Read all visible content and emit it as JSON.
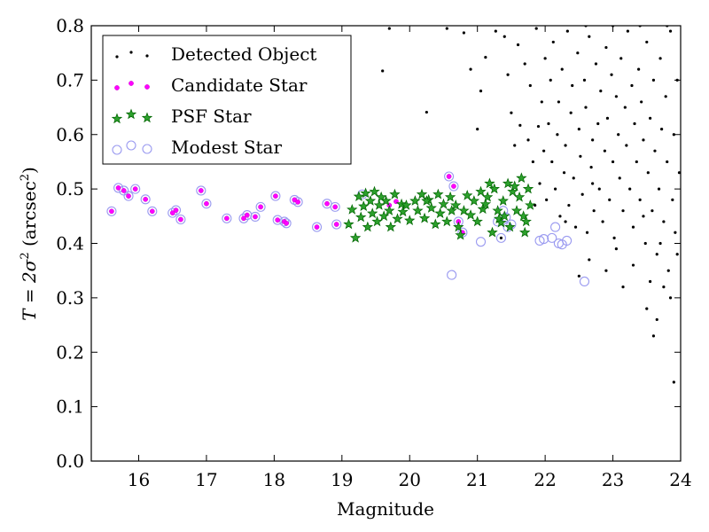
{
  "chart_data": {
    "type": "scatter",
    "title": "",
    "xlabel": "Magnitude",
    "ylabel_main": "T = 2σ",
    "ylabel_sup": "2",
    "ylabel_paren": " (arcsec",
    "ylabel_unit_sup": "2",
    "ylabel_close": ")",
    "xlim": [
      15.3,
      24
    ],
    "ylim": [
      0,
      0.8
    ],
    "xticks": [
      "16",
      "17",
      "18",
      "19",
      "20",
      "21",
      "22",
      "23",
      "24"
    ],
    "yticks": [
      "0.0",
      "0.1",
      "0.2",
      "0.3",
      "0.4",
      "0.5",
      "0.6",
      "0.7",
      "0.8"
    ],
    "grid": false,
    "legend_position": "top-left",
    "colors": {
      "detected": "#000000",
      "candidate_fill": "#ff00ff",
      "psf_fill": "#2ca02c",
      "psf_edge": "#006400",
      "modest_edge": "#9a9af0"
    },
    "series": [
      {
        "name": "Detected Object",
        "marker": "dot",
        "points": [
          [
            19.7,
            0.795
          ],
          [
            19.6,
            0.717
          ],
          [
            20.25,
            0.641
          ],
          [
            20.55,
            0.795
          ],
          [
            20.8,
            0.787
          ],
          [
            20.9,
            0.72
          ],
          [
            21.05,
            0.68
          ],
          [
            21.12,
            0.742
          ],
          [
            21.27,
            0.79
          ],
          [
            21.4,
            0.78
          ],
          [
            21.45,
            0.71
          ],
          [
            21.5,
            0.64
          ],
          [
            21.6,
            0.765
          ],
          [
            21.63,
            0.617
          ],
          [
            21.7,
            0.73
          ],
          [
            21.75,
            0.59
          ],
          [
            21.78,
            0.69
          ],
          [
            21.82,
            0.55
          ],
          [
            21.87,
            0.795
          ],
          [
            21.9,
            0.615
          ],
          [
            21.92,
            0.51
          ],
          [
            21.95,
            0.66
          ],
          [
            21.98,
            0.57
          ],
          [
            22.0,
            0.74
          ],
          [
            22.02,
            0.48
          ],
          [
            22.05,
            0.62
          ],
          [
            22.08,
            0.7
          ],
          [
            22.1,
            0.55
          ],
          [
            22.12,
            0.77
          ],
          [
            22.15,
            0.5
          ],
          [
            22.18,
            0.6
          ],
          [
            22.2,
            0.66
          ],
          [
            22.22,
            0.45
          ],
          [
            22.25,
            0.72
          ],
          [
            22.28,
            0.53
          ],
          [
            22.3,
            0.58
          ],
          [
            22.33,
            0.79
          ],
          [
            22.35,
            0.47
          ],
          [
            22.38,
            0.64
          ],
          [
            22.4,
            0.69
          ],
          [
            22.42,
            0.52
          ],
          [
            22.45,
            0.43
          ],
          [
            22.48,
            0.75
          ],
          [
            22.5,
            0.61
          ],
          [
            22.52,
            0.56
          ],
          [
            22.55,
            0.49
          ],
          [
            22.58,
            0.7
          ],
          [
            22.6,
            0.65
          ],
          [
            22.62,
            0.42
          ],
          [
            22.65,
            0.78
          ],
          [
            22.68,
            0.54
          ],
          [
            22.7,
            0.59
          ],
          [
            22.72,
            0.46
          ],
          [
            22.75,
            0.73
          ],
          [
            22.78,
            0.62
          ],
          [
            22.8,
            0.5
          ],
          [
            22.82,
            0.68
          ],
          [
            22.85,
            0.44
          ],
          [
            22.88,
            0.57
          ],
          [
            22.9,
            0.76
          ],
          [
            22.92,
            0.63
          ],
          [
            22.95,
            0.48
          ],
          [
            22.98,
            0.71
          ],
          [
            23.0,
            0.55
          ],
          [
            23.02,
            0.41
          ],
          [
            23.05,
            0.67
          ],
          [
            23.08,
            0.6
          ],
          [
            23.1,
            0.52
          ],
          [
            23.12,
            0.74
          ],
          [
            23.15,
            0.46
          ],
          [
            23.18,
            0.65
          ],
          [
            23.2,
            0.58
          ],
          [
            23.22,
            0.79
          ],
          [
            23.25,
            0.5
          ],
          [
            23.28,
            0.69
          ],
          [
            23.3,
            0.43
          ],
          [
            23.32,
            0.62
          ],
          [
            23.35,
            0.55
          ],
          [
            23.38,
            0.72
          ],
          [
            23.4,
            0.48
          ],
          [
            23.42,
            0.66
          ],
          [
            23.45,
            0.59
          ],
          [
            23.48,
            0.4
          ],
          [
            23.5,
            0.77
          ],
          [
            23.52,
            0.53
          ],
          [
            23.55,
            0.63
          ],
          [
            23.58,
            0.46
          ],
          [
            23.6,
            0.7
          ],
          [
            23.62,
            0.57
          ],
          [
            23.65,
            0.38
          ],
          [
            23.68,
            0.5
          ],
          [
            23.7,
            0.74
          ],
          [
            23.72,
            0.61
          ],
          [
            23.75,
            0.44
          ],
          [
            23.78,
            0.67
          ],
          [
            23.8,
            0.55
          ],
          [
            23.82,
            0.35
          ],
          [
            23.85,
            0.79
          ],
          [
            23.88,
            0.48
          ],
          [
            23.9,
            0.6
          ],
          [
            23.92,
            0.42
          ],
          [
            23.95,
            0.7
          ],
          [
            23.98,
            0.53
          ],
          [
            23.5,
            0.28
          ],
          [
            23.6,
            0.23
          ],
          [
            23.65,
            0.26
          ],
          [
            23.9,
            0.145
          ],
          [
            22.5,
            0.34
          ],
          [
            23.15,
            0.32
          ],
          [
            23.75,
            0.32
          ],
          [
            21.35,
            0.41
          ],
          [
            21.0,
            0.61
          ],
          [
            21.55,
            0.58
          ],
          [
            22.65,
            0.37
          ],
          [
            23.05,
            0.39
          ],
          [
            23.3,
            0.36
          ],
          [
            23.55,
            0.33
          ],
          [
            23.85,
            0.3
          ],
          [
            22.9,
            0.35
          ],
          [
            22.3,
            0.44
          ],
          [
            21.85,
            0.47
          ],
          [
            22.7,
            0.51
          ],
          [
            23.45,
            0.45
          ],
          [
            23.7,
            0.4
          ],
          [
            23.95,
            0.38
          ],
          [
            22.6,
            0.8
          ],
          [
            23.0,
            0.8
          ],
          [
            23.4,
            0.8
          ],
          [
            23.8,
            0.8
          ]
        ]
      },
      {
        "name": "Candidate Star",
        "marker": "circle",
        "points": [
          [
            15.6,
            0.459
          ],
          [
            15.7,
            0.502
          ],
          [
            15.78,
            0.497
          ],
          [
            15.85,
            0.487
          ],
          [
            15.95,
            0.5
          ],
          [
            16.1,
            0.481
          ],
          [
            16.2,
            0.459
          ],
          [
            16.5,
            0.456
          ],
          [
            16.55,
            0.461
          ],
          [
            16.62,
            0.444
          ],
          [
            16.92,
            0.497
          ],
          [
            17.0,
            0.473
          ],
          [
            17.3,
            0.446
          ],
          [
            17.55,
            0.446
          ],
          [
            17.6,
            0.452
          ],
          [
            17.72,
            0.449
          ],
          [
            17.8,
            0.467
          ],
          [
            18.02,
            0.487
          ],
          [
            18.05,
            0.443
          ],
          [
            18.15,
            0.44
          ],
          [
            18.18,
            0.437
          ],
          [
            18.3,
            0.48
          ],
          [
            18.35,
            0.476
          ],
          [
            18.63,
            0.43
          ],
          [
            18.78,
            0.473
          ],
          [
            18.9,
            0.467
          ],
          [
            18.92,
            0.435
          ],
          [
            19.8,
            0.477
          ],
          [
            20.58,
            0.523
          ],
          [
            20.65,
            0.505
          ],
          [
            20.72,
            0.44
          ],
          [
            20.78,
            0.42
          ],
          [
            19.7,
            0.47
          ]
        ]
      },
      {
        "name": "PSF Star",
        "marker": "star",
        "points": [
          [
            19.1,
            0.435
          ],
          [
            19.15,
            0.462
          ],
          [
            19.2,
            0.41
          ],
          [
            19.25,
            0.486
          ],
          [
            19.28,
            0.448
          ],
          [
            19.32,
            0.468
          ],
          [
            19.35,
            0.492
          ],
          [
            19.38,
            0.43
          ],
          [
            19.42,
            0.478
          ],
          [
            19.45,
            0.455
          ],
          [
            19.48,
            0.495
          ],
          [
            19.52,
            0.44
          ],
          [
            19.55,
            0.47
          ],
          [
            19.58,
            0.485
          ],
          [
            19.62,
            0.45
          ],
          [
            19.65,
            0.478
          ],
          [
            19.7,
            0.46
          ],
          [
            19.72,
            0.43
          ],
          [
            19.78,
            0.49
          ],
          [
            19.82,
            0.445
          ],
          [
            19.88,
            0.472
          ],
          [
            19.9,
            0.458
          ],
          [
            20.0,
            0.442
          ],
          [
            20.08,
            0.478
          ],
          [
            20.12,
            0.46
          ],
          [
            20.18,
            0.49
          ],
          [
            20.22,
            0.446
          ],
          [
            20.28,
            0.48
          ],
          [
            20.32,
            0.465
          ],
          [
            20.38,
            0.435
          ],
          [
            20.42,
            0.49
          ],
          [
            20.45,
            0.455
          ],
          [
            20.5,
            0.472
          ],
          [
            20.55,
            0.44
          ],
          [
            20.6,
            0.485
          ],
          [
            20.62,
            0.46
          ],
          [
            20.68,
            0.47
          ],
          [
            20.72,
            0.43
          ],
          [
            20.75,
            0.415
          ],
          [
            20.8,
            0.46
          ],
          [
            20.85,
            0.488
          ],
          [
            20.9,
            0.452
          ],
          [
            20.95,
            0.478
          ],
          [
            21.0,
            0.44
          ],
          [
            21.05,
            0.495
          ],
          [
            21.08,
            0.463
          ],
          [
            21.12,
            0.472
          ],
          [
            21.18,
            0.51
          ],
          [
            21.22,
            0.42
          ],
          [
            21.25,
            0.5
          ],
          [
            21.3,
            0.46
          ],
          [
            21.32,
            0.445
          ],
          [
            21.35,
            0.438
          ],
          [
            21.38,
            0.478
          ],
          [
            21.4,
            0.45
          ],
          [
            21.45,
            0.51
          ],
          [
            21.48,
            0.43
          ],
          [
            21.52,
            0.495
          ],
          [
            21.55,
            0.505
          ],
          [
            21.58,
            0.46
          ],
          [
            21.62,
            0.485
          ],
          [
            21.65,
            0.52
          ],
          [
            21.68,
            0.45
          ],
          [
            21.72,
            0.44
          ],
          [
            21.75,
            0.5
          ],
          [
            21.78,
            0.47
          ],
          [
            21.7,
            0.42
          ],
          [
            19.95,
            0.47
          ],
          [
            20.25,
            0.478
          ],
          [
            21.15,
            0.485
          ]
        ]
      },
      {
        "name": "Modest Star",
        "marker": "open-circle",
        "points": [
          [
            15.6,
            0.459
          ],
          [
            15.7,
            0.502
          ],
          [
            15.78,
            0.497
          ],
          [
            15.85,
            0.487
          ],
          [
            15.95,
            0.5
          ],
          [
            16.1,
            0.481
          ],
          [
            16.2,
            0.459
          ],
          [
            16.5,
            0.456
          ],
          [
            16.55,
            0.461
          ],
          [
            16.62,
            0.444
          ],
          [
            16.92,
            0.497
          ],
          [
            17.0,
            0.473
          ],
          [
            17.3,
            0.446
          ],
          [
            17.55,
            0.446
          ],
          [
            17.6,
            0.452
          ],
          [
            17.72,
            0.449
          ],
          [
            17.8,
            0.467
          ],
          [
            18.02,
            0.487
          ],
          [
            18.05,
            0.443
          ],
          [
            18.15,
            0.44
          ],
          [
            18.18,
            0.437
          ],
          [
            18.3,
            0.48
          ],
          [
            18.35,
            0.476
          ],
          [
            18.63,
            0.43
          ],
          [
            18.78,
            0.473
          ],
          [
            18.9,
            0.467
          ],
          [
            18.92,
            0.435
          ],
          [
            20.58,
            0.523
          ],
          [
            20.65,
            0.505
          ],
          [
            20.62,
            0.342
          ],
          [
            20.72,
            0.44
          ],
          [
            20.78,
            0.42
          ],
          [
            21.05,
            0.403
          ],
          [
            21.35,
            0.41
          ],
          [
            21.92,
            0.405
          ],
          [
            21.98,
            0.408
          ],
          [
            22.1,
            0.41
          ],
          [
            22.15,
            0.43
          ],
          [
            22.2,
            0.4
          ],
          [
            22.25,
            0.398
          ],
          [
            22.32,
            0.405
          ],
          [
            22.58,
            0.33
          ],
          [
            21.5,
            0.435
          ],
          [
            21.42,
            0.448
          ],
          [
            21.3,
            0.44
          ],
          [
            21.38,
            0.46
          ],
          [
            21.45,
            0.43
          ],
          [
            19.3,
            0.49
          ]
        ]
      }
    ]
  }
}
